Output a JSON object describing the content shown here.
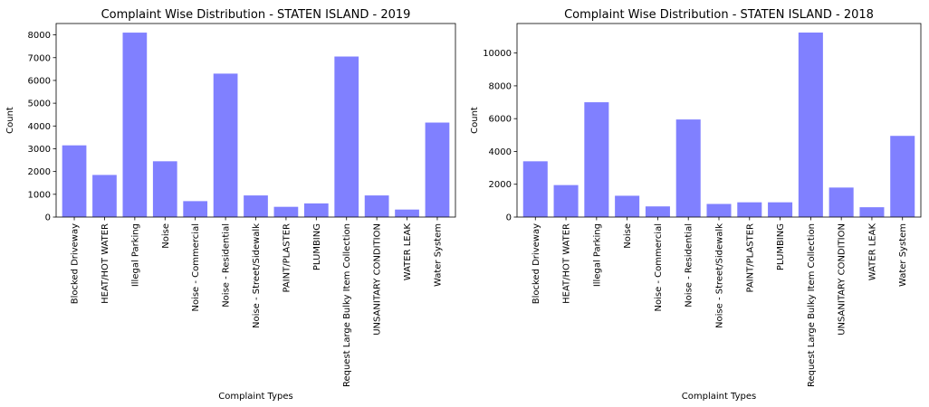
{
  "chart_data": [
    {
      "type": "bar",
      "title": "Complaint Wise Distribution - STATEN ISLAND - 2019",
      "xlabel": "Complaint Types",
      "ylabel": "Count",
      "categories": [
        "Blocked Driveway",
        "HEAT/HOT WATER",
        "Illegal Parking",
        "Noise",
        "Noise - Commercial",
        "Noise - Residential",
        "Noise - Street/Sidewalk",
        "PAINT/PLASTER",
        "PLUMBING",
        "Request Large Bulky Item Collection",
        "UNSANITARY CONDITION",
        "WATER LEAK",
        "Water System"
      ],
      "values": [
        3150,
        1850,
        8100,
        2450,
        700,
        6300,
        950,
        450,
        600,
        7050,
        950,
        330,
        4150
      ],
      "ylim": [
        0,
        8500
      ],
      "yticks": [
        0,
        1000,
        2000,
        3000,
        4000,
        5000,
        6000,
        7000,
        8000
      ],
      "bar_color": "#8080ff",
      "grid": false
    },
    {
      "type": "bar",
      "title": "Complaint Wise Distribution - STATEN ISLAND - 2018",
      "xlabel": "Complaint Types",
      "ylabel": "Count",
      "categories": [
        "Blocked Driveway",
        "HEAT/HOT WATER",
        "Illegal Parking",
        "Noise",
        "Noise - Commercial",
        "Noise - Residential",
        "Noise - Street/Sidewalk",
        "PAINT/PLASTER",
        "PLUMBING",
        "Request Large Bulky Item Collection",
        "UNSANITARY CONDITION",
        "WATER LEAK",
        "Water System"
      ],
      "values": [
        3400,
        1950,
        7000,
        1300,
        650,
        5950,
        800,
        900,
        900,
        11250,
        1800,
        600,
        4950
      ],
      "ylim": [
        0,
        11800
      ],
      "yticks": [
        0,
        2000,
        4000,
        6000,
        8000,
        10000
      ],
      "bar_color": "#8080ff",
      "grid": false
    }
  ]
}
